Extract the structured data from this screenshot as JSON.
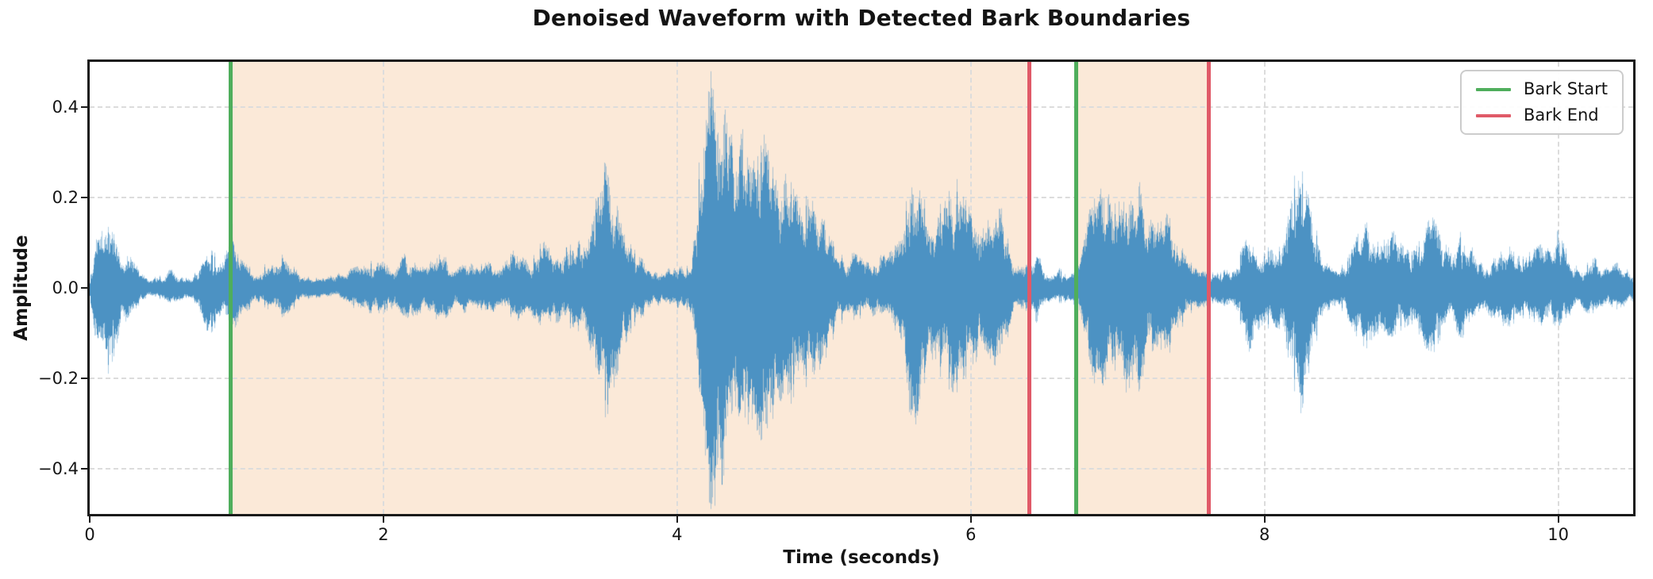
{
  "title": "Denoised Waveform with Detected Bark Boundaries",
  "chart_data": {
    "type": "area",
    "subtype": "audio-waveform",
    "title": "Denoised Waveform with Detected Bark Boundaries",
    "xlabel": "Time (seconds)",
    "ylabel": "Amplitude",
    "xlim": [
      0,
      10.51
    ],
    "ylim": [
      -0.5,
      0.5
    ],
    "xticks": [
      0,
      2,
      4,
      6,
      8,
      10
    ],
    "xtick_labels": [
      "0",
      "2",
      "4",
      "6",
      "8",
      "10"
    ],
    "yticks": [
      0.4,
      0.2,
      0.0,
      -0.2,
      -0.4
    ],
    "ytick_labels": [
      "0.4",
      "0.2",
      "0.0",
      "−0.2",
      "−0.4"
    ],
    "grid": true,
    "grid_style": "dashed",
    "legend": {
      "position": "upper right",
      "entries": [
        {
          "label": "Bark Start",
          "color": "#4FAE5C"
        },
        {
          "label": "Bark End",
          "color": "#E05A68"
        }
      ]
    },
    "bark_regions": [
      {
        "start": 0.96,
        "end": 6.4
      },
      {
        "start": 6.72,
        "end": 7.62
      }
    ],
    "colors": {
      "waveform": "#4C92C3",
      "bark_start_line": "#4FAE5C",
      "bark_end_line": "#E05A68",
      "region_fill": "#FBE9D8",
      "grid": "#DCDCDC",
      "spine": "#1A1A1A",
      "text": "#141414"
    },
    "envelope_comment": "breakpoints [time_s, peak_above, peak_below] of the waveform envelope",
    "envelope": [
      [
        0.0,
        0.01,
        0.01
      ],
      [
        0.03,
        0.08,
        0.1
      ],
      [
        0.08,
        0.13,
        0.16
      ],
      [
        0.13,
        0.12,
        0.17
      ],
      [
        0.18,
        0.1,
        0.12
      ],
      [
        0.22,
        0.05,
        0.06
      ],
      [
        0.26,
        0.08,
        0.07
      ],
      [
        0.3,
        0.07,
        0.06
      ],
      [
        0.34,
        0.03,
        0.03
      ],
      [
        0.4,
        0.02,
        0.02
      ],
      [
        0.45,
        0.03,
        0.025
      ],
      [
        0.5,
        0.02,
        0.02
      ],
      [
        0.55,
        0.04,
        0.035
      ],
      [
        0.6,
        0.03,
        0.03
      ],
      [
        0.65,
        0.02,
        0.02
      ],
      [
        0.7,
        0.02,
        0.02
      ],
      [
        0.75,
        0.05,
        0.05
      ],
      [
        0.8,
        0.08,
        0.1
      ],
      [
        0.85,
        0.07,
        0.08
      ],
      [
        0.9,
        0.06,
        0.06
      ],
      [
        0.94,
        0.09,
        0.08
      ],
      [
        0.965,
        0.16,
        0.12
      ],
      [
        1.0,
        0.07,
        0.07
      ],
      [
        1.05,
        0.05,
        0.05
      ],
      [
        1.1,
        0.04,
        0.04
      ],
      [
        1.15,
        0.03,
        0.03
      ],
      [
        1.2,
        0.05,
        0.04
      ],
      [
        1.25,
        0.06,
        0.05
      ],
      [
        1.3,
        0.07,
        0.06
      ],
      [
        1.35,
        0.05,
        0.05
      ],
      [
        1.4,
        0.04,
        0.04
      ],
      [
        1.45,
        0.03,
        0.03
      ],
      [
        1.5,
        0.02,
        0.02
      ],
      [
        1.6,
        0.02,
        0.02
      ],
      [
        1.7,
        0.03,
        0.02
      ],
      [
        1.8,
        0.04,
        0.04
      ],
      [
        1.9,
        0.05,
        0.05
      ],
      [
        1.95,
        0.06,
        0.05
      ],
      [
        2.0,
        0.05,
        0.05
      ],
      [
        2.05,
        0.04,
        0.04
      ],
      [
        2.1,
        0.05,
        0.05
      ],
      [
        2.15,
        0.07,
        0.06
      ],
      [
        2.2,
        0.06,
        0.06
      ],
      [
        2.25,
        0.04,
        0.05
      ],
      [
        2.3,
        0.05,
        0.05
      ],
      [
        2.35,
        0.06,
        0.06
      ],
      [
        2.4,
        0.08,
        0.07
      ],
      [
        2.45,
        0.05,
        0.05
      ],
      [
        2.5,
        0.04,
        0.04
      ],
      [
        2.55,
        0.05,
        0.05
      ],
      [
        2.6,
        0.05,
        0.04
      ],
      [
        2.65,
        0.04,
        0.04
      ],
      [
        2.7,
        0.06,
        0.05
      ],
      [
        2.75,
        0.05,
        0.05
      ],
      [
        2.8,
        0.04,
        0.04
      ],
      [
        2.85,
        0.06,
        0.05
      ],
      [
        2.9,
        0.08,
        0.07
      ],
      [
        2.95,
        0.06,
        0.06
      ],
      [
        3.0,
        0.05,
        0.05
      ],
      [
        3.05,
        0.08,
        0.07
      ],
      [
        3.1,
        0.1,
        0.08
      ],
      [
        3.15,
        0.08,
        0.07
      ],
      [
        3.2,
        0.07,
        0.07
      ],
      [
        3.25,
        0.09,
        0.08
      ],
      [
        3.3,
        0.08,
        0.08
      ],
      [
        3.35,
        0.1,
        0.09
      ],
      [
        3.4,
        0.13,
        0.12
      ],
      [
        3.45,
        0.18,
        0.16
      ],
      [
        3.5,
        0.25,
        0.26
      ],
      [
        3.55,
        0.23,
        0.24
      ],
      [
        3.6,
        0.15,
        0.16
      ],
      [
        3.65,
        0.1,
        0.11
      ],
      [
        3.7,
        0.08,
        0.08
      ],
      [
        3.75,
        0.06,
        0.06
      ],
      [
        3.8,
        0.05,
        0.05
      ],
      [
        3.85,
        0.04,
        0.04
      ],
      [
        3.9,
        0.03,
        0.03
      ],
      [
        3.95,
        0.04,
        0.04
      ],
      [
        4.0,
        0.05,
        0.04
      ],
      [
        4.05,
        0.04,
        0.04
      ],
      [
        4.1,
        0.05,
        0.05
      ],
      [
        4.15,
        0.25,
        0.2
      ],
      [
        4.2,
        0.44,
        0.4
      ],
      [
        4.25,
        0.42,
        0.46
      ],
      [
        4.3,
        0.38,
        0.44
      ],
      [
        4.35,
        0.33,
        0.35
      ],
      [
        4.4,
        0.3,
        0.32
      ],
      [
        4.45,
        0.36,
        0.34
      ],
      [
        4.5,
        0.28,
        0.3
      ],
      [
        4.55,
        0.26,
        0.28
      ],
      [
        4.6,
        0.31,
        0.33
      ],
      [
        4.65,
        0.24,
        0.26
      ],
      [
        4.7,
        0.21,
        0.23
      ],
      [
        4.75,
        0.23,
        0.25
      ],
      [
        4.8,
        0.19,
        0.21
      ],
      [
        4.85,
        0.17,
        0.19
      ],
      [
        4.9,
        0.19,
        0.2
      ],
      [
        4.95,
        0.15,
        0.17
      ],
      [
        5.0,
        0.14,
        0.15
      ],
      [
        5.05,
        0.1,
        0.11
      ],
      [
        5.1,
        0.07,
        0.08
      ],
      [
        5.15,
        0.06,
        0.06
      ],
      [
        5.2,
        0.07,
        0.07
      ],
      [
        5.25,
        0.06,
        0.06
      ],
      [
        5.3,
        0.05,
        0.05
      ],
      [
        5.35,
        0.06,
        0.06
      ],
      [
        5.4,
        0.08,
        0.07
      ],
      [
        5.45,
        0.07,
        0.07
      ],
      [
        5.5,
        0.09,
        0.09
      ],
      [
        5.55,
        0.14,
        0.13
      ],
      [
        5.6,
        0.29,
        0.31
      ],
      [
        5.65,
        0.21,
        0.23
      ],
      [
        5.7,
        0.16,
        0.17
      ],
      [
        5.75,
        0.14,
        0.15
      ],
      [
        5.8,
        0.17,
        0.18
      ],
      [
        5.85,
        0.19,
        0.2
      ],
      [
        5.9,
        0.22,
        0.21
      ],
      [
        5.95,
        0.18,
        0.18
      ],
      [
        6.0,
        0.16,
        0.17
      ],
      [
        6.05,
        0.14,
        0.14
      ],
      [
        6.1,
        0.12,
        0.12
      ],
      [
        6.15,
        0.16,
        0.15
      ],
      [
        6.2,
        0.17,
        0.16
      ],
      [
        6.25,
        0.1,
        0.1
      ],
      [
        6.3,
        0.05,
        0.05
      ],
      [
        6.35,
        0.04,
        0.04
      ],
      [
        6.4,
        0.05,
        0.05
      ],
      [
        6.45,
        0.08,
        0.07
      ],
      [
        6.5,
        0.04,
        0.04
      ],
      [
        6.55,
        0.03,
        0.03
      ],
      [
        6.6,
        0.04,
        0.03
      ],
      [
        6.65,
        0.03,
        0.03
      ],
      [
        6.7,
        0.04,
        0.04
      ],
      [
        6.75,
        0.06,
        0.06
      ],
      [
        6.8,
        0.14,
        0.13
      ],
      [
        6.85,
        0.22,
        0.2
      ],
      [
        6.9,
        0.25,
        0.22
      ],
      [
        6.95,
        0.18,
        0.17
      ],
      [
        7.0,
        0.16,
        0.16
      ],
      [
        7.05,
        0.22,
        0.2
      ],
      [
        7.1,
        0.26,
        0.24
      ],
      [
        7.15,
        0.22,
        0.2
      ],
      [
        7.2,
        0.15,
        0.14
      ],
      [
        7.25,
        0.12,
        0.12
      ],
      [
        7.3,
        0.16,
        0.15
      ],
      [
        7.35,
        0.14,
        0.13
      ],
      [
        7.4,
        0.12,
        0.11
      ],
      [
        7.45,
        0.07,
        0.07
      ],
      [
        7.5,
        0.05,
        0.05
      ],
      [
        7.55,
        0.04,
        0.04
      ],
      [
        7.6,
        0.04,
        0.04
      ],
      [
        7.65,
        0.03,
        0.03
      ],
      [
        7.7,
        0.03,
        0.03
      ],
      [
        7.75,
        0.04,
        0.04
      ],
      [
        7.8,
        0.05,
        0.05
      ],
      [
        7.85,
        0.08,
        0.08
      ],
      [
        7.9,
        0.11,
        0.13
      ],
      [
        7.95,
        0.08,
        0.09
      ],
      [
        8.0,
        0.07,
        0.07
      ],
      [
        8.05,
        0.09,
        0.09
      ],
      [
        8.1,
        0.08,
        0.08
      ],
      [
        8.15,
        0.12,
        0.12
      ],
      [
        8.2,
        0.22,
        0.2
      ],
      [
        8.25,
        0.24,
        0.25
      ],
      [
        8.3,
        0.18,
        0.17
      ],
      [
        8.35,
        0.12,
        0.11
      ],
      [
        8.4,
        0.06,
        0.06
      ],
      [
        8.45,
        0.04,
        0.04
      ],
      [
        8.5,
        0.04,
        0.04
      ],
      [
        8.55,
        0.05,
        0.05
      ],
      [
        8.6,
        0.08,
        0.08
      ],
      [
        8.65,
        0.12,
        0.11
      ],
      [
        8.7,
        0.13,
        0.12
      ],
      [
        8.75,
        0.1,
        0.1
      ],
      [
        8.8,
        0.08,
        0.08
      ],
      [
        8.85,
        0.13,
        0.1
      ],
      [
        8.9,
        0.1,
        0.09
      ],
      [
        8.95,
        0.08,
        0.08
      ],
      [
        9.0,
        0.07,
        0.07
      ],
      [
        9.05,
        0.09,
        0.09
      ],
      [
        9.1,
        0.13,
        0.12
      ],
      [
        9.15,
        0.14,
        0.13
      ],
      [
        9.2,
        0.1,
        0.1
      ],
      [
        9.25,
        0.08,
        0.08
      ],
      [
        9.3,
        0.09,
        0.09
      ],
      [
        9.35,
        0.12,
        0.1
      ],
      [
        9.4,
        0.1,
        0.09
      ],
      [
        9.45,
        0.06,
        0.06
      ],
      [
        9.5,
        0.05,
        0.05
      ],
      [
        9.55,
        0.06,
        0.06
      ],
      [
        9.6,
        0.08,
        0.07
      ],
      [
        9.65,
        0.09,
        0.08
      ],
      [
        9.7,
        0.07,
        0.07
      ],
      [
        9.75,
        0.06,
        0.06
      ],
      [
        9.8,
        0.07,
        0.06
      ],
      [
        9.85,
        0.08,
        0.07
      ],
      [
        9.9,
        0.09,
        0.08
      ],
      [
        9.95,
        0.07,
        0.07
      ],
      [
        10.0,
        0.13,
        0.08
      ],
      [
        10.05,
        0.08,
        0.06
      ],
      [
        10.1,
        0.05,
        0.05
      ],
      [
        10.15,
        0.04,
        0.04
      ],
      [
        10.2,
        0.05,
        0.05
      ],
      [
        10.25,
        0.06,
        0.05
      ],
      [
        10.3,
        0.04,
        0.04
      ],
      [
        10.35,
        0.04,
        0.04
      ],
      [
        10.4,
        0.05,
        0.05
      ],
      [
        10.45,
        0.04,
        0.04
      ],
      [
        10.51,
        0.03,
        0.03
      ]
    ]
  }
}
